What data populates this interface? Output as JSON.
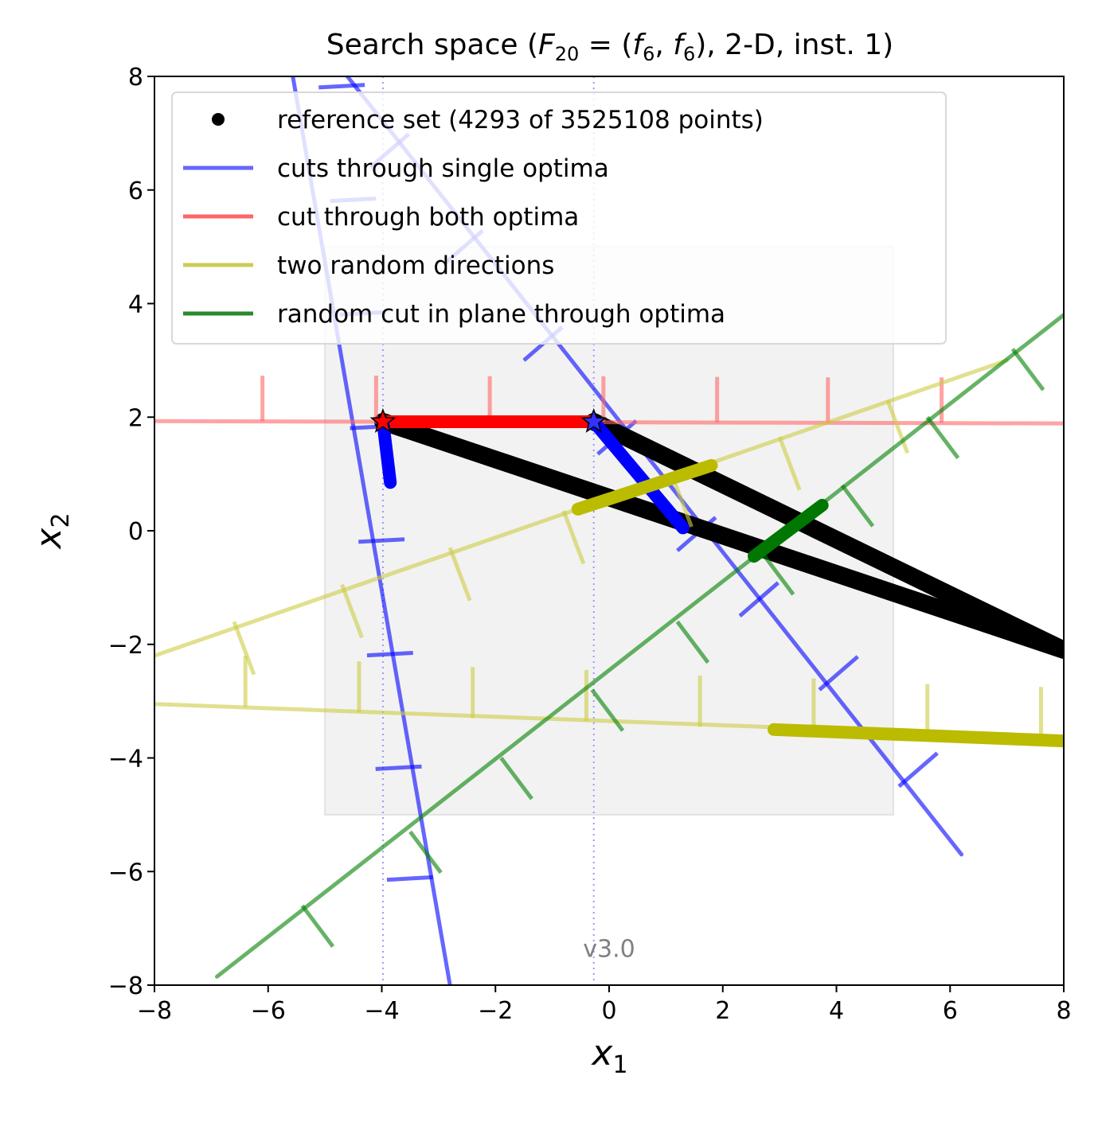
{
  "chart_data": {
    "type": "line",
    "title": "Search space (F20 = (f6, f6), 2-D, inst. 1)",
    "title_parts": {
      "prefix": "Search space (",
      "F": "F",
      "F_sub": "20",
      "eq": " = (",
      "f1": "f",
      "f1_sub": "6",
      "comma": ", ",
      "f2": "f",
      "f2_sub": "6",
      "suffix": "), 2-D, inst. 1)"
    },
    "xlabel": "x",
    "xlabel_sub": "1",
    "ylabel": "x",
    "ylabel_sub": "2",
    "xlim": [
      -8,
      8
    ],
    "ylim": [
      -8,
      8
    ],
    "xticks": [
      -8,
      -6,
      -4,
      -2,
      0,
      2,
      4,
      6,
      8
    ],
    "yticks": [
      -8,
      -6,
      -4,
      -2,
      0,
      2,
      4,
      6,
      8
    ],
    "xtick_labels": [
      "−8",
      "−6",
      "−4",
      "−2",
      "0",
      "2",
      "4",
      "6",
      "8"
    ],
    "ytick_labels": [
      "−8",
      "−6",
      "−4",
      "−2",
      "0",
      "2",
      "4",
      "6",
      "8"
    ],
    "grid": false,
    "legend_position": "upper-left",
    "legend": [
      {
        "label": "reference set (4293 of 3525108 points)",
        "color": "#000000",
        "marker": "dot"
      },
      {
        "label": "cuts through single optima",
        "color": "#6666ff",
        "marker": "line"
      },
      {
        "label": "cut through both optima",
        "color": "#ff6666",
        "marker": "line"
      },
      {
        "label": "two random directions",
        "color": "#cccc55",
        "marker": "line"
      },
      {
        "label": "random cut in plane through optima",
        "color": "#2a8a2a",
        "marker": "line"
      }
    ],
    "region_of_interest": {
      "x": [
        -5,
        5
      ],
      "y": [
        -5,
        5
      ],
      "color": "#f2f2f2"
    },
    "optima": [
      {
        "name": "optimum 1",
        "x": -3.98,
        "y": 1.92,
        "color": "#ff0000"
      },
      {
        "name": "optimum 2",
        "x": -0.27,
        "y": 1.92,
        "color": "#3333ff"
      }
    ],
    "optima_vertical_lines_x": [
      -3.98,
      -0.27
    ],
    "series": [
      {
        "group": "cuts through single optima",
        "color": "#0000ff",
        "line": [
          [
            -5.6,
            8.2
          ],
          [
            -2.8,
            -8.0
          ]
        ],
        "ticks": [
          [
            -4.3,
            7.85
          ],
          [
            -4.1,
            5.85
          ],
          [
            -3.93,
            3.85
          ],
          [
            -3.75,
            1.85
          ],
          [
            -3.6,
            -0.15
          ],
          [
            -3.45,
            -2.15
          ],
          [
            -3.3,
            -4.15
          ],
          [
            -3.1,
            -6.1
          ]
        ],
        "tick_dir": [
          -0.9,
          -0.05
        ],
        "tick_len": 0.9
      },
      {
        "group": "cuts through single optima",
        "color": "#0000ff",
        "line": [
          [
            -5.0,
            8.5
          ],
          [
            6.2,
            -5.7
          ]
        ],
        "ticks": [
          [
            -4.2,
            6.4
          ],
          [
            -2.9,
            4.7
          ],
          [
            -1.5,
            3.0
          ],
          [
            -0.2,
            1.35
          ],
          [
            1.2,
            -0.35
          ],
          [
            2.3,
            -1.5
          ],
          [
            3.7,
            -2.8
          ],
          [
            5.1,
            -4.5
          ]
        ],
        "tick_dir": [
          0.75,
          0.65
        ],
        "tick_len": 0.9
      },
      {
        "group": "reference set",
        "color": "#000000",
        "line": [
          [
            -3.98,
            1.92
          ],
          [
            8.0,
            -2.1
          ]
        ],
        "width": 22
      },
      {
        "group": "reference set",
        "color": "#000000",
        "line": [
          [
            -0.27,
            1.92
          ],
          [
            8.0,
            -2.1
          ]
        ],
        "width": 22
      },
      {
        "group": "cut through both optima",
        "color": "#ff6666",
        "line": [
          [
            -8.0,
            1.93
          ],
          [
            8.0,
            1.89
          ]
        ],
        "ticks": [
          [
            -6.1,
            1.93
          ],
          [
            -4.1,
            1.93
          ],
          [
            -2.1,
            1.92
          ],
          [
            -0.1,
            1.92
          ],
          [
            1.9,
            1.91
          ],
          [
            3.85,
            1.9
          ],
          [
            5.85,
            1.9
          ]
        ],
        "tick_dir": [
          0,
          1
        ],
        "tick_len": 0.8
      },
      {
        "group": "two random directions",
        "color": "#cccc44",
        "line": [
          [
            -8.0,
            -2.2
          ],
          [
            7.0,
            3.0
          ]
        ],
        "ticks": [
          [
            -6.6,
            -1.6
          ],
          [
            -4.7,
            -0.95
          ],
          [
            -2.8,
            -0.3
          ],
          [
            -0.8,
            0.35
          ],
          [
            1.1,
            1.0
          ],
          [
            3.0,
            1.65
          ],
          [
            4.9,
            2.3
          ]
        ],
        "tick_dir": [
          0.35,
          -0.93
        ],
        "tick_len": 1.0
      },
      {
        "group": "two random directions",
        "color": "#cccc44",
        "line": [
          [
            -8.0,
            -3.05
          ],
          [
            8.0,
            -3.65
          ]
        ],
        "ticks": [
          [
            -6.4,
            -3.1
          ],
          [
            -4.4,
            -3.2
          ],
          [
            -2.4,
            -3.3
          ],
          [
            -0.4,
            -3.35
          ],
          [
            1.6,
            -3.45
          ],
          [
            3.6,
            -3.5
          ],
          [
            5.6,
            -3.6
          ],
          [
            7.6,
            -3.65
          ]
        ],
        "tick_dir": [
          0,
          1
        ],
        "tick_len": 0.9
      },
      {
        "group": "random cut in plane through optima",
        "color": "#008000",
        "line": [
          [
            -6.9,
            -7.85
          ],
          [
            8.0,
            3.8
          ]
        ],
        "ticks": [
          [
            -5.4,
            -6.6
          ],
          [
            -3.5,
            -5.3
          ],
          [
            -1.9,
            -4.0
          ],
          [
            -0.3,
            -2.8
          ],
          [
            1.2,
            -1.6
          ],
          [
            2.7,
            -0.4
          ],
          [
            4.1,
            0.8
          ],
          [
            5.6,
            2.0
          ],
          [
            7.1,
            3.2
          ]
        ],
        "tick_dir": [
          0.6,
          -0.8
        ],
        "tick_len": 0.9
      }
    ],
    "highlights": [
      {
        "name": "red optimal segment",
        "color": "#ff0000",
        "from": [
          -3.98,
          1.92
        ],
        "to": [
          -0.27,
          1.92
        ]
      },
      {
        "name": "blue segment near optimum 1",
        "color": "#0000ff",
        "from": [
          -3.98,
          1.92
        ],
        "to": [
          -3.85,
          0.85
        ]
      },
      {
        "name": "blue segment near optimum 2",
        "color": "#0000ff",
        "from": [
          -0.27,
          1.92
        ],
        "to": [
          1.3,
          0.05
        ]
      },
      {
        "name": "yellow segment upper",
        "color": "#bbbb00",
        "from": [
          -0.55,
          0.38
        ],
        "to": [
          1.8,
          1.15
        ]
      },
      {
        "name": "yellow segment lower",
        "color": "#bbbb00",
        "from": [
          2.9,
          -3.5
        ],
        "to": [
          8.0,
          -3.7
        ]
      },
      {
        "name": "green segment",
        "color": "#007700",
        "from": [
          2.55,
          -0.45
        ],
        "to": [
          3.75,
          0.45
        ]
      }
    ],
    "annotation": "v3.0"
  }
}
